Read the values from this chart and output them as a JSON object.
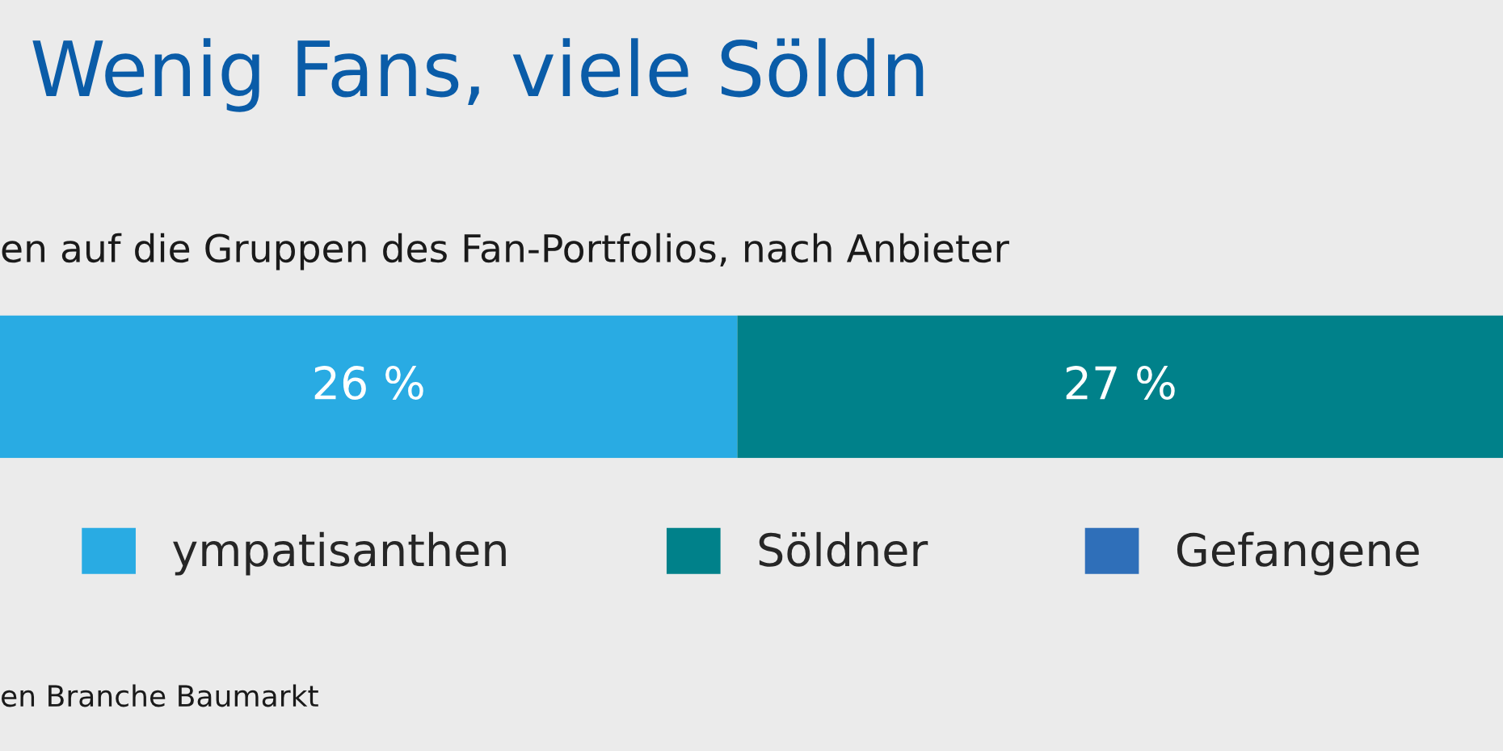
{
  "chart_data": {
    "type": "bar",
    "orientation": "horizontal",
    "stacked": true,
    "title": "Wenig Fans, viele Söldn",
    "subtitle": "en auf die Gruppen des Fan-Portfolios, nach Anbieter",
    "categories": [
      null
    ],
    "series": [
      {
        "name": "ympatisanthen",
        "color": "#29abe3",
        "values": [
          26
        ],
        "value_labels": [
          "26 %"
        ]
      },
      {
        "name": "Söldner",
        "color": "#00818a",
        "values": [
          27
        ],
        "value_labels": [
          "27 %"
        ]
      },
      {
        "name": "Gefangene",
        "color": "#2f6fb9",
        "values": [
          null
        ]
      }
    ],
    "legend": "bottom",
    "annotations": [
      "en Branche Baumarkt"
    ]
  }
}
